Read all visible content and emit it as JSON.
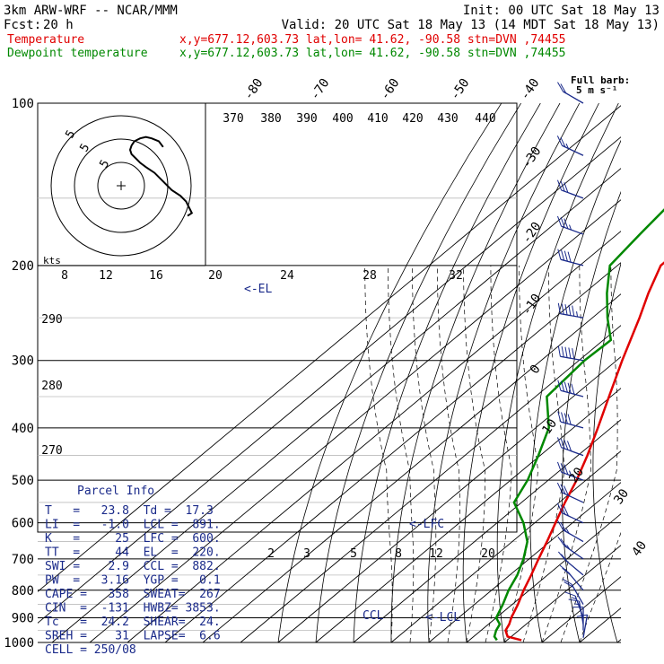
{
  "header": {
    "line1_left": "3km ARW-WRF -- NCAR/MMM",
    "line1_right": "Init: 00 UTC Sat 18 May 13",
    "line2_left_a": "Fcst:",
    "line2_left_b": "20 h",
    "line2_right": "Valid: 20 UTC Sat 18 May 13 (14 MDT Sat 18 May 13)",
    "temp_label": "Temperature",
    "dew_label": "Dewpoint temperature",
    "location_info": "x,y=677.12,603.73   lat,lon= 41.62, -90.58   stn=DVN ,74455",
    "barb_legend_title": "Full barb:",
    "barb_legend_value": "5 m s⁻¹"
  },
  "colors": {
    "temperature": "#e00000",
    "dewpoint": "#008800",
    "parcel": "#1a2a8a",
    "isotherm": "#000000",
    "grid": "#000000"
  },
  "hodograph": {
    "unit_label": "kts",
    "ring_labels": [
      "5",
      "5",
      "5"
    ]
  },
  "pressure_labels": [
    "100",
    "200",
    "300",
    "400",
    "500",
    "600",
    "700",
    "800",
    "900",
    "1000"
  ],
  "theta_labels": [
    "370",
    "380",
    "390",
    "400",
    "410",
    "420",
    "430",
    "440"
  ],
  "theta_low_labels": [
    "290",
    "280",
    "270"
  ],
  "isotherm_top_labels": [
    "-80",
    "-70",
    "-60",
    "-50",
    "-40"
  ],
  "isotherm_right_labels": [
    "-30",
    "-20",
    "-10",
    "0",
    "10",
    "20",
    "30",
    "40"
  ],
  "mixing_ratio_labels_upper": [
    "8",
    "12",
    "16",
    "20",
    "24",
    "28",
    "32"
  ],
  "mixing_ratio_labels_lower": [
    "2",
    "3",
    "5",
    "8",
    "12",
    "20"
  ],
  "markers": {
    "el": "<-EL",
    "lfc": "<-LFC",
    "lcl": "<-LCL",
    "ccl": "CCL"
  },
  "parcel_info": {
    "title": "Parcel Info",
    "rows": [
      "T   =   23.8  Td =  17.3",
      "LI  =   -1.0  LCL =  891.",
      "K   =     25  LFC =  600.",
      "TT  =     44  EL  =  220.",
      "SWI =    2.9  CCL =  882.",
      "PW  =   3.16  YGP =   0.1",
      "CAPE =   358  SWEAT=  267",
      "CIN  =  -131  HWBZ= 3853.",
      "Tc   =  24.2  SHEAR=  24.",
      "SREH =    31  LAPSE=  6.6",
      "CELL = 250/08"
    ]
  },
  "chart_data": {
    "type": "line",
    "title": "",
    "xlabel": "",
    "ylabel": "",
    "y_scale": "log-pressure",
    "ylim_hPa": [
      1000,
      100
    ],
    "series": [
      {
        "name": "Temperature",
        "pressure_hPa": [
          990,
          975,
          950,
          925,
          900,
          850,
          800,
          750,
          700,
          650,
          600,
          550,
          500,
          450,
          400,
          350,
          300,
          250,
          225,
          200,
          175,
          150,
          125,
          100
        ],
        "temp_C": [
          23.8,
          19,
          16.5,
          15.5,
          14,
          11.5,
          8.5,
          5.7,
          2.5,
          -0.8,
          -4.5,
          -8.5,
          -12.5,
          -17.5,
          -23.5,
          -30.5,
          -38.5,
          -47.5,
          -53,
          -58.5,
          -58.5,
          -58,
          -59.5,
          -62
        ]
      },
      {
        "name": "Dewpoint temperature",
        "pressure_hPa": [
          990,
          975,
          950,
          925,
          900,
          850,
          800,
          750,
          700,
          650,
          600,
          550,
          500,
          450,
          400,
          350,
          300,
          275,
          250,
          225,
          200,
          175,
          150,
          125,
          100
        ],
        "dewpoint_C": [
          17.3,
          15.5,
          14,
          13,
          10,
          7.5,
          4.5,
          2,
          -1.5,
          -6,
          -13,
          -22,
          -25.5,
          -30.5,
          -36.5,
          -47,
          -48.5,
          -48,
          -56,
          -64,
          -72,
          -74,
          -76,
          -79.5,
          -84
        ]
      }
    ],
    "wind_barbs": {
      "pressure_hPa": [
        980,
        950,
        925,
        900,
        850,
        800,
        750,
        700,
        650,
        600,
        550,
        500,
        450,
        400,
        350,
        300,
        250,
        200,
        175,
        150,
        125,
        100
      ],
      "direction_deg": [
        170,
        180,
        190,
        200,
        210,
        220,
        230,
        235,
        240,
        245,
        245,
        250,
        250,
        255,
        255,
        260,
        260,
        255,
        250,
        250,
        245,
        240
      ],
      "speed_ms": [
        5,
        7,
        8,
        9,
        10,
        10,
        12,
        13,
        14,
        15,
        17,
        18,
        20,
        22,
        25,
        27,
        28,
        22,
        18,
        16,
        13,
        10
      ]
    },
    "hodograph": {
      "u_kt": [
        -2,
        -5,
        -10,
        -14,
        -18,
        -22,
        -24,
        -25,
        -24,
        -21,
        -18,
        -14,
        -8,
        -2,
        4,
        10,
        14,
        16,
        18,
        15
      ],
      "v_kt": [
        2,
        6,
        8,
        9,
        8,
        6,
        3,
        0,
        -3,
        -6,
        -9,
        -12,
        -16,
        -22,
        -28,
        -32,
        -36,
        -40,
        -44,
        -46
      ]
    }
  }
}
